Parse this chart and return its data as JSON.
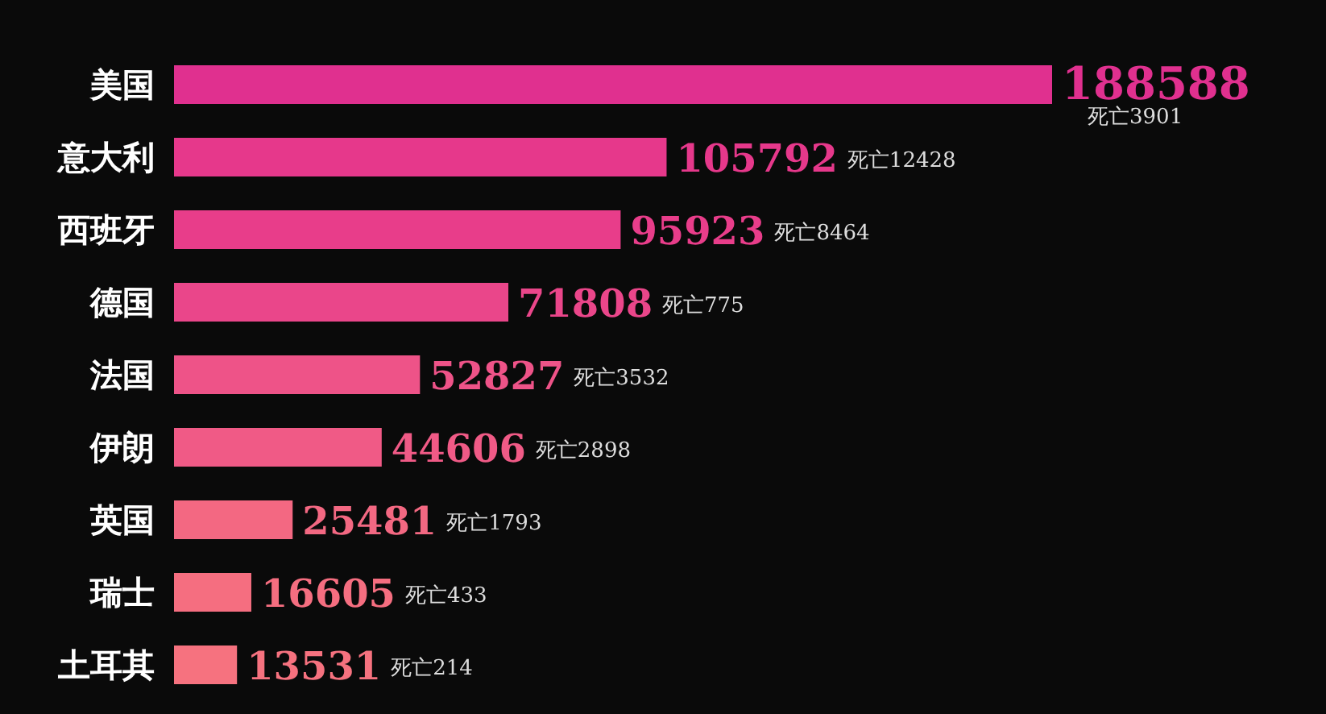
{
  "chart_data": {
    "type": "bar",
    "orientation": "horizontal",
    "data_labels": true,
    "categories": [
      "美国",
      "意大利",
      "西班牙",
      "德国",
      "法国",
      "伊朗",
      "英国",
      "瑞士",
      "土耳其"
    ],
    "values": [
      188588,
      105792,
      95923,
      71808,
      52827,
      44606,
      25481,
      16605,
      13531
    ],
    "colors": [
      "#e0308f",
      "#e6388b",
      "#e83d8a",
      "#ea468a",
      "#ee5388",
      "#f05a86",
      "#f36882",
      "#f56e80",
      "#f6727f"
    ],
    "annotations": [
      "死亡3901",
      "死亡12428",
      "死亡8464",
      "死亡775",
      "死亡3532",
      "死亡2898",
      "死亡1793",
      "死亡433",
      "死亡214"
    ]
  }
}
